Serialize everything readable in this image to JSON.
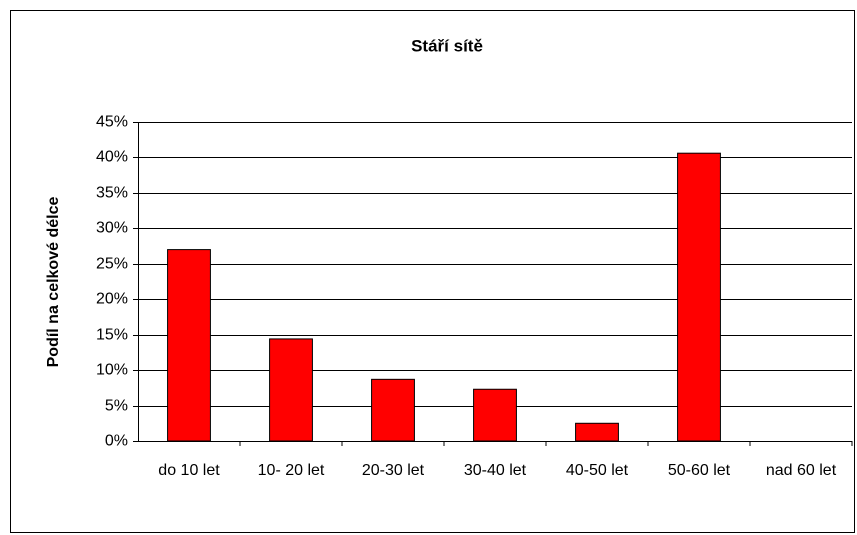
{
  "chart_data": {
    "type": "bar",
    "title": "Stáří sítě",
    "y_label": "Podíl na celkové délce",
    "categories": [
      "do 10 let",
      "10- 20 let",
      "20-30 let",
      "30-40 let",
      "40-50 let",
      "50-60 let",
      "nad 60 let"
    ],
    "values": [
      27,
      14.4,
      8.7,
      7.3,
      2.5,
      40.6,
      0
    ],
    "color": "#ff0000",
    "ylim": [
      0,
      45
    ],
    "yticks": [
      {
        "value": 0,
        "label": "0%"
      },
      {
        "value": 5,
        "label": "5%"
      },
      {
        "value": 10,
        "label": "10%"
      },
      {
        "value": 15,
        "label": "15%"
      },
      {
        "value": 20,
        "label": "20%"
      },
      {
        "value": 25,
        "label": "25%"
      },
      {
        "value": 30,
        "label": "30%"
      },
      {
        "value": 35,
        "label": "35%"
      },
      {
        "value": 40,
        "label": "40%"
      },
      {
        "value": 45,
        "label": "45%"
      }
    ],
    "grid": true
  }
}
